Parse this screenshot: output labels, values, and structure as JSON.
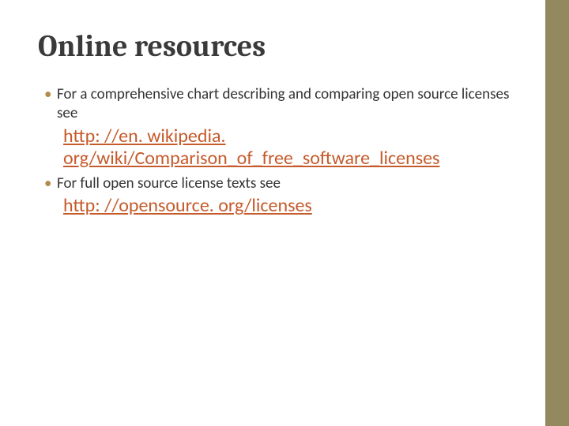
{
  "slide": {
    "title": "Online resources",
    "title_fontsize": 38,
    "title_color": "#3a3a3a",
    "bullets": [
      {
        "text": "For a comprehensive chart describing and comparing open source licenses see",
        "link": "http: //en. wikipedia. org/wiki/Comparison_of_free_software_licenses"
      },
      {
        "text": "For full open source license texts see",
        "link": "http: //opensource. org/licenses"
      }
    ],
    "bullet_fontsize": 19,
    "bullet_color": "#333333",
    "bullet_marker_color": "#b58b4c",
    "link_fontsize": 24,
    "link_color": "#c55a2b",
    "sidebar_color": "#94885f",
    "background_color": "#ffffff"
  }
}
